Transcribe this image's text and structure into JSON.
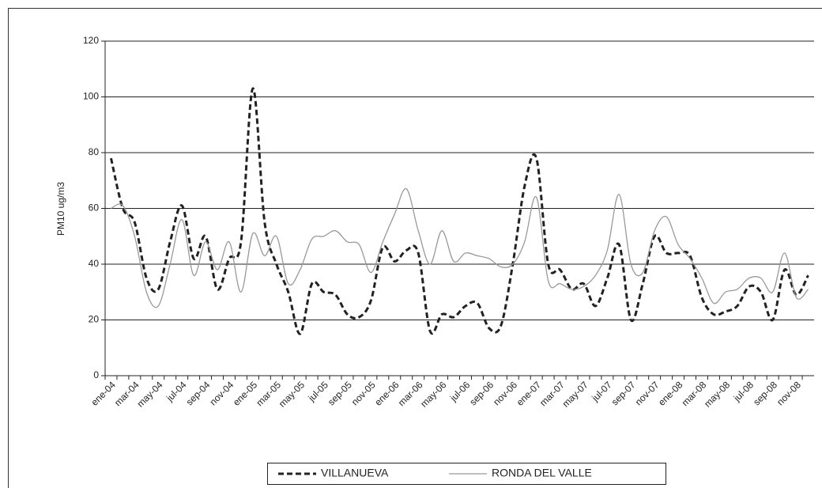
{
  "chart_data": {
    "type": "line",
    "y_label": "PM10 ug/m3",
    "categories": [
      "ene-04",
      null,
      "mar-04",
      null,
      "may-04",
      null,
      "jul-04",
      null,
      "sep-04",
      null,
      "nov-04",
      null,
      "ene-05",
      null,
      "mar-05",
      null,
      "may-05",
      null,
      "jul-05",
      null,
      "sep-05",
      null,
      "nov-05",
      null,
      "ene-06",
      null,
      "mar-06",
      null,
      "may-06",
      null,
      "jul-06",
      null,
      "sep-06",
      null,
      "nov-06",
      null,
      "ene-07",
      null,
      "mar-07",
      null,
      "may-07",
      null,
      "jul-07",
      null,
      "sep-07",
      null,
      "nov-07",
      null,
      "ene-08",
      null,
      "mar-08",
      null,
      "may-08",
      null,
      "jul-08",
      null,
      "sep-08",
      null,
      "nov-08",
      null
    ],
    "series": [
      {
        "name": "VILLANUEVA",
        "color": "#222222",
        "dashed": true,
        "values": [
          78,
          60,
          55,
          35,
          31,
          48,
          61,
          42,
          50,
          31,
          42,
          48,
          103,
          55,
          40,
          30,
          15,
          33,
          30,
          29,
          22,
          21,
          27,
          46,
          41,
          45,
          44,
          16,
          22,
          21,
          25,
          26,
          17,
          18,
          40,
          68,
          78,
          40,
          38,
          31,
          33,
          25,
          35,
          47,
          20,
          33,
          50,
          44,
          44,
          43,
          28,
          22,
          23,
          25,
          32,
          30,
          20,
          38,
          29,
          36
        ]
      },
      {
        "name": "RONDA DEL VALLE",
        "color": "#999999",
        "dashed": false,
        "values": [
          60,
          61,
          50,
          30,
          25,
          40,
          56,
          36,
          48,
          38,
          48,
          30,
          51,
          43,
          50,
          33,
          38,
          49,
          50,
          52,
          48,
          47,
          37,
          48,
          58,
          67,
          52,
          40,
          52,
          41,
          44,
          43,
          42,
          39,
          40,
          48,
          64,
          34,
          33,
          31,
          32,
          36,
          45,
          65,
          40,
          37,
          52,
          57,
          47,
          42,
          35,
          26,
          30,
          31,
          35,
          35,
          30,
          44,
          28,
          31
        ]
      }
    ],
    "ylim": [
      0,
      120
    ],
    "yticks": [
      0,
      20,
      40,
      60,
      80,
      100,
      120
    ],
    "grid": true
  }
}
